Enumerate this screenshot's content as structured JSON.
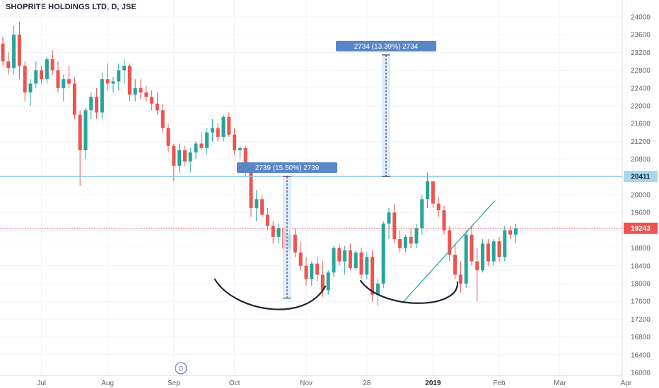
{
  "header": {
    "title": "SHOPRITE HOLDINGS LTD, D, JSE"
  },
  "chart_data": {
    "type": "candlestick",
    "title": "SHOPRITE HOLDINGS LTD, D, JSE",
    "xlabel": "",
    "ylabel": "",
    "ylim": [
      16000,
      24000
    ],
    "y_ticks": [
      16000,
      16400,
      16800,
      17200,
      17600,
      18000,
      18400,
      18800,
      19200,
      19600,
      20000,
      20400,
      20800,
      21200,
      21600,
      22000,
      22400,
      22800,
      23200,
      23600,
      24000
    ],
    "x_tick_labels": [
      {
        "label": "Jul",
        "bar": 7,
        "bold": false
      },
      {
        "label": "Aug",
        "bar": 19,
        "bold": false
      },
      {
        "label": "Sep",
        "bar": 31,
        "bold": false
      },
      {
        "label": "Oct",
        "bar": 42,
        "bold": false
      },
      {
        "label": "Nov",
        "bar": 55,
        "bold": false
      },
      {
        "label": "28",
        "bar": 66,
        "bold": false
      },
      {
        "label": "2019",
        "bar": 78,
        "bold": true
      },
      {
        "label": "Feb",
        "bar": 90,
        "bold": false
      },
      {
        "label": "Mar",
        "bar": 101,
        "bold": false
      },
      {
        "label": "Apr",
        "bar": 113,
        "bold": false
      }
    ],
    "colors": {
      "up": "#26a69a",
      "down": "#ef5350",
      "resistance": "#7fc6e8",
      "current": "#ef5350",
      "measure_fill": "#dbe8fa",
      "measure_label": "#5a86c8",
      "trend": "#26a69a"
    },
    "candles": [
      [
        23400,
        23550,
        22900,
        23000
      ],
      [
        23000,
        23200,
        22700,
        22850
      ],
      [
        22850,
        23800,
        22700,
        23600
      ],
      [
        23600,
        23900,
        22600,
        22900
      ],
      [
        22900,
        23000,
        22100,
        22300
      ],
      [
        22300,
        22600,
        22000,
        22500
      ],
      [
        22500,
        23000,
        22400,
        22800
      ],
      [
        22800,
        22900,
        22500,
        22600
      ],
      [
        22600,
        23100,
        22500,
        23050
      ],
      [
        23050,
        23250,
        22700,
        22800
      ],
      [
        22800,
        23000,
        22300,
        22400
      ],
      [
        22400,
        22700,
        22100,
        22600
      ],
      [
        22600,
        22900,
        22400,
        22500
      ],
      [
        22500,
        22650,
        21700,
        21800
      ],
      [
        21800,
        21900,
        20200,
        21000
      ],
      [
        21000,
        21950,
        20800,
        21900
      ],
      [
        21900,
        22300,
        21700,
        22200
      ],
      [
        22200,
        22400,
        21700,
        21850
      ],
      [
        21850,
        22750,
        21700,
        22600
      ],
      [
        22600,
        22950,
        22350,
        22500
      ],
      [
        22500,
        22650,
        22300,
        22550
      ],
      [
        22550,
        22950,
        22350,
        22800
      ],
      [
        22800,
        23050,
        22500,
        22900
      ],
      [
        22900,
        22950,
        22100,
        22250
      ],
      [
        22250,
        22600,
        22100,
        22400
      ],
      [
        22400,
        22600,
        22150,
        22300
      ],
      [
        22300,
        22450,
        22100,
        22200
      ],
      [
        22200,
        22350,
        21900,
        22050
      ],
      [
        22050,
        22300,
        21800,
        21900
      ],
      [
        21900,
        22050,
        21400,
        21500
      ],
      [
        21500,
        21600,
        20950,
        21100
      ],
      [
        21100,
        21150,
        20300,
        20650
      ],
      [
        20650,
        21150,
        20500,
        21000
      ],
      [
        21000,
        21100,
        20650,
        20750
      ],
      [
        20750,
        21050,
        20500,
        20950
      ],
      [
        20950,
        21200,
        20800,
        21150
      ],
      [
        21150,
        21400,
        21000,
        21050
      ],
      [
        21050,
        21500,
        20900,
        21400
      ],
      [
        21400,
        21700,
        21200,
        21500
      ],
      [
        21500,
        21600,
        21200,
        21300
      ],
      [
        21300,
        21800,
        21200,
        21750
      ],
      [
        21750,
        21850,
        21300,
        21350
      ],
      [
        21350,
        21500,
        20900,
        21000
      ],
      [
        21000,
        21100,
        20800,
        21050
      ]
    ],
    "annotations": [
      {
        "type": "horizontal_line",
        "price": 20411,
        "label": "20411"
      },
      {
        "type": "price_line",
        "price": 19243,
        "label": "19243"
      },
      {
        "type": "measure",
        "label": "2739 (15.50%) 2739"
      },
      {
        "type": "measure",
        "label": "2734 (13.39%) 2734"
      }
    ],
    "events": [
      "D"
    ]
  }
}
